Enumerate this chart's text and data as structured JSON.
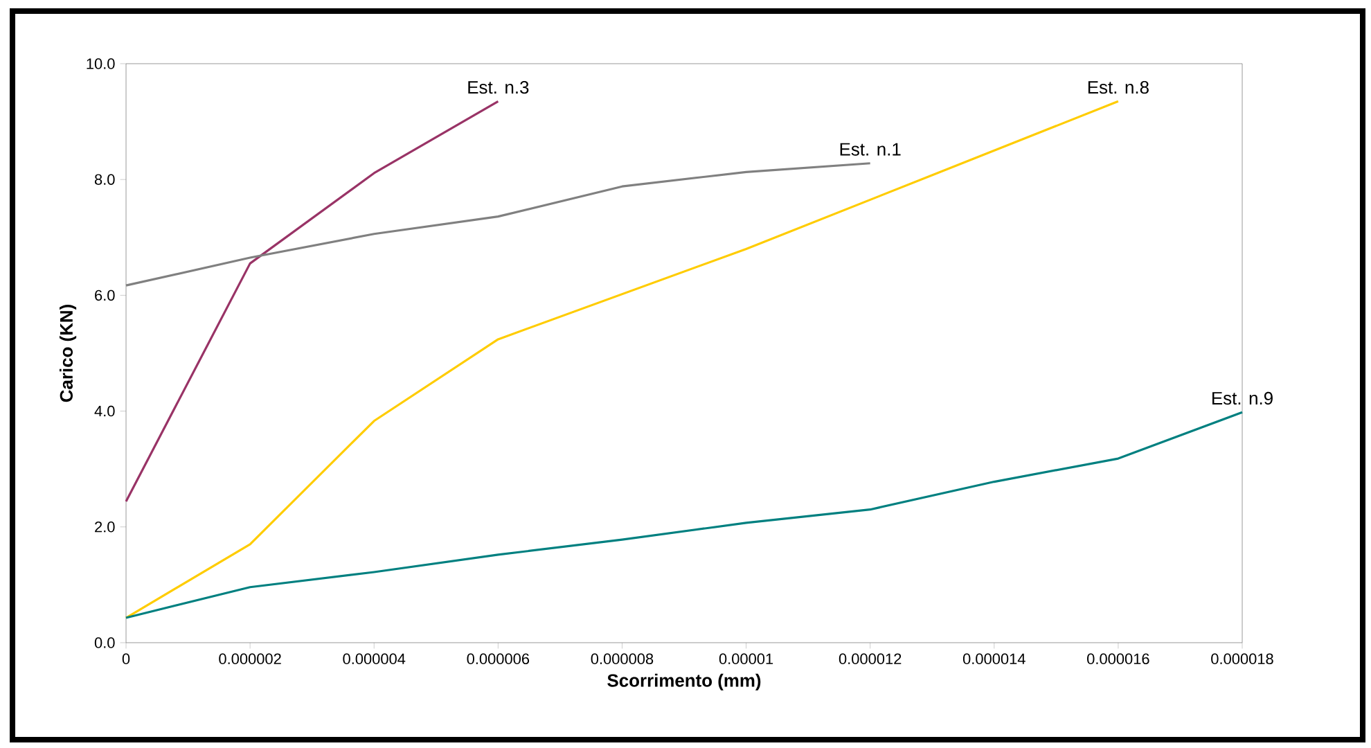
{
  "chart_data": {
    "type": "line",
    "xlabel": "Scorrimento (mm)",
    "ylabel": "Carico (KN)",
    "xlim": [
      0,
      1.8e-05
    ],
    "ylim": [
      0,
      10
    ],
    "xticks": [
      {
        "value": 0,
        "label": "0"
      },
      {
        "value": 2e-06,
        "label": "0.000002"
      },
      {
        "value": 4e-06,
        "label": "0.000004"
      },
      {
        "value": 6e-06,
        "label": "0.000006"
      },
      {
        "value": 8e-06,
        "label": "0.000008"
      },
      {
        "value": 1e-05,
        "label": "0.00001"
      },
      {
        "value": 1.2e-05,
        "label": "0.000012"
      },
      {
        "value": 1.4e-05,
        "label": "0.000014"
      },
      {
        "value": 1.6e-05,
        "label": "0.000016"
      },
      {
        "value": 1.8e-05,
        "label": "0.000018"
      }
    ],
    "yticks": [
      {
        "value": 0,
        "label": "0.0"
      },
      {
        "value": 2,
        "label": "2.0"
      },
      {
        "value": 4,
        "label": "4.0"
      },
      {
        "value": 6,
        "label": "6.0"
      },
      {
        "value": 8,
        "label": "8.0"
      },
      {
        "value": 10,
        "label": "10.0"
      }
    ],
    "grid": false,
    "legend": false,
    "marker": "none",
    "line_style": "solid",
    "series": [
      {
        "name": "Est. n.3",
        "color": "#993366",
        "x": [
          0,
          2e-06,
          4e-06,
          6e-06
        ],
        "values": [
          2.44,
          6.55,
          8.11,
          9.35
        ]
      },
      {
        "name": "Est. n.1",
        "color": "#808080",
        "x": [
          0,
          2e-06,
          4e-06,
          6e-06,
          8e-06,
          1e-05,
          1.2e-05
        ],
        "values": [
          6.17,
          6.65,
          7.06,
          7.36,
          7.88,
          8.13,
          8.28
        ]
      },
      {
        "name": "Est. n.8",
        "color": "#ffcc00",
        "x": [
          0,
          2e-06,
          4e-06,
          6e-06,
          1e-05,
          1.6e-05
        ],
        "values": [
          0.43,
          1.7,
          3.83,
          5.24,
          6.8,
          9.35
        ]
      },
      {
        "name": "Est. n.9",
        "color": "#008080",
        "x": [
          0,
          2e-06,
          4e-06,
          6e-06,
          8e-06,
          1e-05,
          1.2e-05,
          1.4e-05,
          1.6e-05,
          1.8e-05
        ],
        "values": [
          0.43,
          0.96,
          1.22,
          1.52,
          1.78,
          2.07,
          2.3,
          2.78,
          3.18,
          3.98
        ]
      }
    ]
  }
}
